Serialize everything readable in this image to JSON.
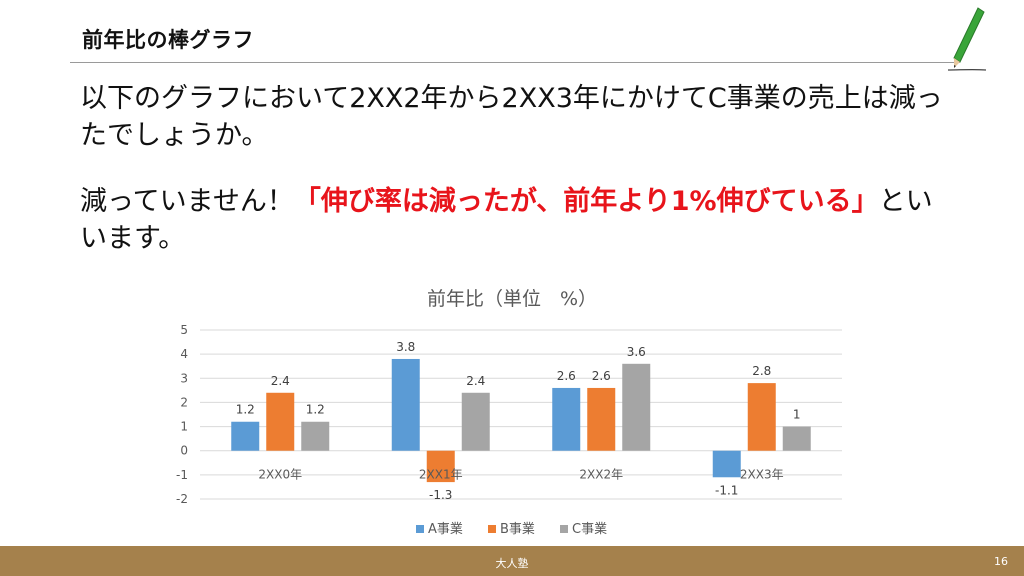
{
  "slide": {
    "title": "前年比の棒グラフ",
    "para1": "以下のグラフにおいて2XX2年から2XX3年にかけてC事業の売上は減ったでしょうか。",
    "para2_plain": "減っていません！",
    "para2_emph": "「伸び率は減ったが、前年より1%伸びている」",
    "para2_tail": "といいます。"
  },
  "footer": {
    "label": "大人塾",
    "page": "16"
  },
  "chart_data": {
    "type": "bar",
    "title": "前年比（単位　%）",
    "categories": [
      "2XX0年",
      "2XX1年",
      "2XX2年",
      "2XX3年"
    ],
    "series": [
      {
        "name": "A事業",
        "color": "#5b9bd5",
        "values": [
          1.2,
          3.8,
          2.6,
          -1.1
        ]
      },
      {
        "name": "B事業",
        "color": "#ed7d31",
        "values": [
          2.4,
          -1.3,
          2.6,
          2.8
        ]
      },
      {
        "name": "C事業",
        "color": "#a5a5a5",
        "values": [
          1.2,
          2.4,
          3.6,
          1
        ]
      }
    ],
    "ylim": [
      -2,
      5
    ],
    "yticks": [
      5,
      4,
      3,
      2,
      1,
      0,
      -1,
      -2
    ],
    "grid": true,
    "legend": "bottom"
  }
}
